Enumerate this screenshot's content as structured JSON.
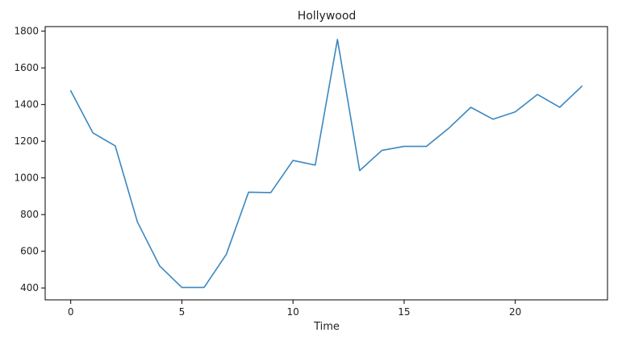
{
  "chart_data": {
    "type": "line",
    "title": "Hollywood",
    "xlabel": "Time",
    "ylabel": "",
    "xlim": [
      -1.15,
      24.15
    ],
    "ylim": [
      335,
      1825
    ],
    "xticks": [
      0,
      5,
      10,
      15,
      20
    ],
    "yticks": [
      400,
      600,
      800,
      1000,
      1200,
      1400,
      1600,
      1800
    ],
    "grid": false,
    "legend": "none",
    "series": [
      {
        "color": "#3a87c0",
        "x": [
          0,
          1,
          2,
          3,
          4,
          5,
          6,
          7,
          8,
          9,
          10,
          11,
          12,
          13,
          14,
          15,
          16,
          17,
          18,
          19,
          20,
          21,
          22,
          23
        ],
        "values": [
          1475,
          1245,
          1175,
          760,
          520,
          403,
          403,
          583,
          922,
          920,
          1095,
          1070,
          1755,
          1040,
          1150,
          1172,
          1172,
          1270,
          1385,
          1320,
          1360,
          1455,
          1385,
          1500
        ]
      }
    ]
  }
}
